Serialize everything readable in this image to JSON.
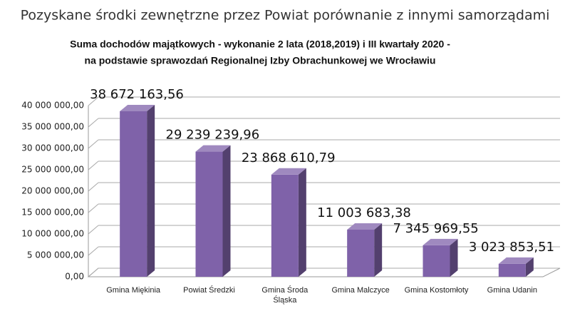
{
  "chart_data": {
    "type": "bar3d",
    "title": "Pozyskane środki zewnętrzne przez Powiat porównanie z innymi samorządami",
    "subtitle": [
      "Suma dochodów majątkowych - wykonanie 2 lata (2018,2019)  i III kwartały  2020 -",
      "na podstawie sprawozdań Regionalnej Izby Obrachunkowej we Wrocławiu"
    ],
    "categories": [
      "Gmina Miękinia",
      "Powiat Średzki",
      "Gmina Środa Śląska",
      "Gmina Malczyce",
      "Gmina Kostomłoty",
      "Gmina Udanin"
    ],
    "values": [
      38672163.56,
      29239239.96,
      23868610.79,
      11003683.38,
      7345969.55,
      3023853.51
    ],
    "value_labels": [
      "38 672 163,56",
      "29 239 239,96",
      "23 868 610,79",
      "11 003 683,38",
      "7 345 969,55",
      "3 023 853,51"
    ],
    "color": "#7f62a9",
    "ylim": [
      0,
      40000000
    ],
    "yticks": [
      {
        "value": 0,
        "label": "0,00"
      },
      {
        "value": 5000000,
        "label": "5 000 000,00"
      },
      {
        "value": 10000000,
        "label": "10 000 000,00"
      },
      {
        "value": 15000000,
        "label": "15 000 000,00"
      },
      {
        "value": 20000000,
        "label": "20 000 000,00"
      },
      {
        "value": 25000000,
        "label": "25 000 000,00"
      },
      {
        "value": 30000000,
        "label": "30 000 000,00"
      },
      {
        "value": 35000000,
        "label": "35 000 000,00"
      },
      {
        "value": 40000000,
        "label": "40 000 000,00"
      }
    ],
    "grid": true
  }
}
